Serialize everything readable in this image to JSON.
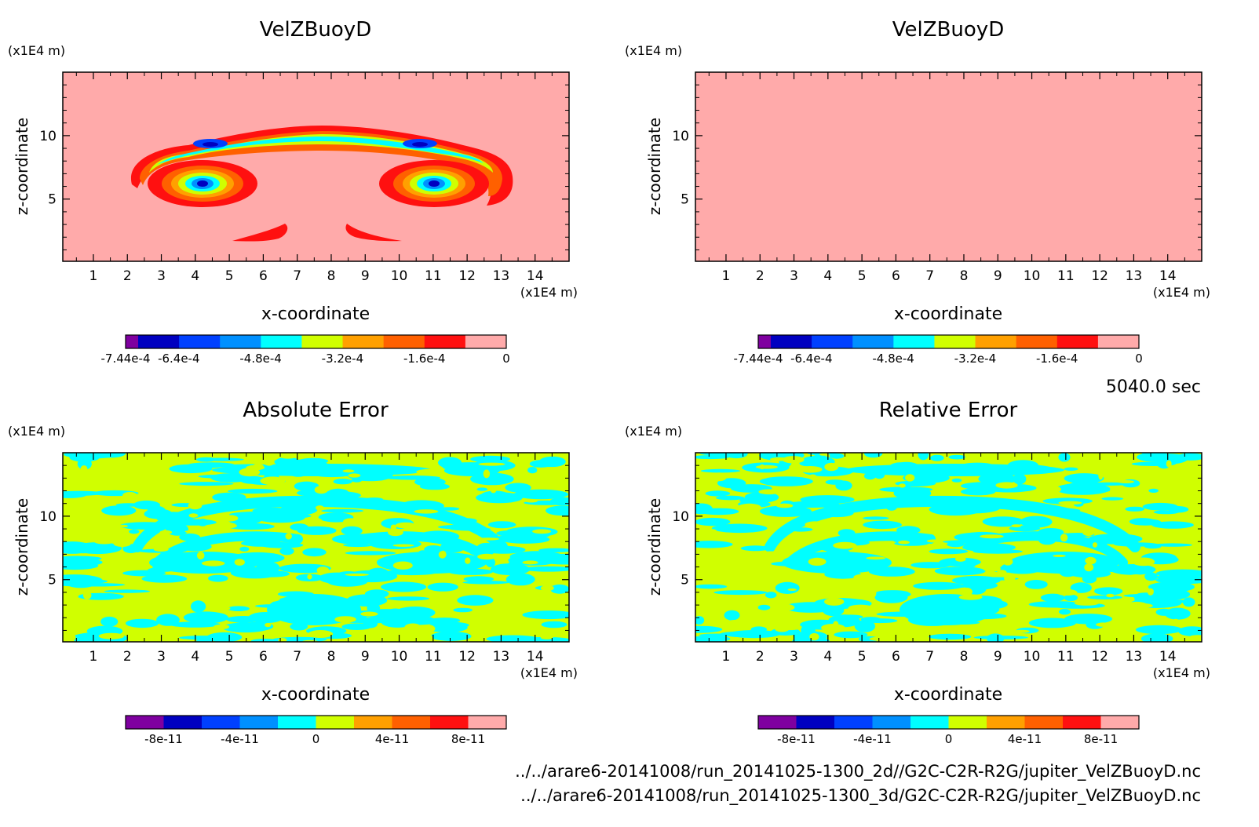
{
  "time_label": "5040.0 sec",
  "file_paths": [
    "../../arare6-20141008/run_20141025-1300_2d//G2C-C2R-R2G/jupiter_VelZBuoyD.nc",
    "../../arare6-20141008/run_20141025-1300_3d/G2C-C2R-R2G/jupiter_VelZBuoyD.nc"
  ],
  "palette": [
    "#7f00a0",
    "#0000c0",
    "#0040ff",
    "#0090ff",
    "#00ffff",
    "#d0ff00",
    "#ffa000",
    "#ff6000",
    "#ff1010",
    "#ffaaaa"
  ],
  "background_colors": {
    "field_top": "#ffaaaa",
    "field_bottom": "#d0ff00"
  },
  "chart_data": [
    {
      "type": "heatmap",
      "title": "VelZBuoyD",
      "xlabel": "x-coordinate",
      "ylabel": "z-coordinate",
      "x_unit": "(x1E4 m)",
      "y_unit": "(x1E4 m)",
      "xlim": [
        0.1,
        15
      ],
      "ylim": [
        0.1,
        15
      ],
      "x_ticks": [
        "1",
        "2",
        "3",
        "4",
        "5",
        "6",
        "7",
        "8",
        "9",
        "10",
        "11",
        "12",
        "13",
        "14"
      ],
      "y_ticks": [
        "5",
        "10"
      ],
      "colorbar_labels": [
        "-7.44e-4",
        "-6.4e-4",
        "-4.8e-4",
        "-3.2e-4",
        "-1.6e-4",
        "0"
      ],
      "colorbar_range": [
        -0.000744,
        0
      ]
    },
    {
      "type": "heatmap",
      "title": "VelZBuoyD",
      "xlabel": "x-coordinate",
      "ylabel": "z-coordinate",
      "x_unit": "(x1E4 m)",
      "y_unit": "(x1E4 m)",
      "xlim": [
        0.1,
        15
      ],
      "ylim": [
        0.1,
        15
      ],
      "x_ticks": [
        "1",
        "2",
        "3",
        "4",
        "5",
        "6",
        "7",
        "8",
        "9",
        "10",
        "11",
        "12",
        "13",
        "14"
      ],
      "y_ticks": [
        "5",
        "10"
      ],
      "colorbar_labels": [
        "-7.44e-4",
        "-6.4e-4",
        "-4.8e-4",
        "-3.2e-4",
        "-1.6e-4",
        "0"
      ],
      "colorbar_range": [
        -0.000744,
        0
      ]
    },
    {
      "type": "heatmap",
      "title": "Absolute Error",
      "xlabel": "x-coordinate",
      "ylabel": "z-coordinate",
      "x_unit": "(x1E4 m)",
      "y_unit": "(x1E4 m)",
      "xlim": [
        0.1,
        15
      ],
      "ylim": [
        0.1,
        15
      ],
      "x_ticks": [
        "1",
        "2",
        "3",
        "4",
        "5",
        "6",
        "7",
        "8",
        "9",
        "10",
        "11",
        "12",
        "13",
        "14"
      ],
      "y_ticks": [
        "5",
        "10"
      ],
      "colorbar_labels": [
        "-8e-11",
        "-4e-11",
        "0",
        "4e-11",
        "8e-11"
      ],
      "colorbar_range": [
        -1e-10,
        1e-10
      ]
    },
    {
      "type": "heatmap",
      "title": "Relative Error",
      "xlabel": "x-coordinate",
      "ylabel": "z-coordinate",
      "x_unit": "(x1E4 m)",
      "y_unit": "(x1E4 m)",
      "xlim": [
        0.1,
        15
      ],
      "ylim": [
        0.1,
        15
      ],
      "x_ticks": [
        "1",
        "2",
        "3",
        "4",
        "5",
        "6",
        "7",
        "8",
        "9",
        "10",
        "11",
        "12",
        "13",
        "14"
      ],
      "y_ticks": [
        "5",
        "10"
      ],
      "colorbar_labels": [
        "-8e-11",
        "-4e-11",
        "0",
        "4e-11",
        "8e-11"
      ],
      "colorbar_range": [
        -1e-10,
        1e-10
      ]
    }
  ]
}
